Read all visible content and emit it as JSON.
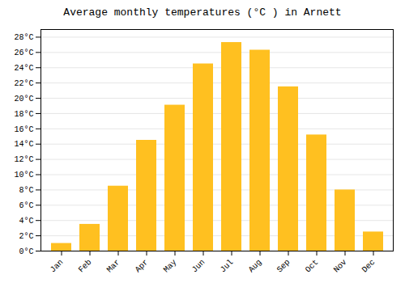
{
  "chart_data": {
    "type": "bar",
    "title": "Average monthly temperatures (°C ) in Arnett",
    "categories": [
      "Jan",
      "Feb",
      "Mar",
      "Apr",
      "May",
      "Jun",
      "Jul",
      "Aug",
      "Sep",
      "Oct",
      "Nov",
      "Dec"
    ],
    "values": [
      1.0,
      3.5,
      8.5,
      14.5,
      19.1,
      24.5,
      27.3,
      26.3,
      21.5,
      15.2,
      8.0,
      2.5
    ],
    "color": "#FFC020",
    "ylim": [
      0,
      29
    ],
    "yticks": [
      {
        "value": 0,
        "label": "0°C"
      },
      {
        "value": 2,
        "label": "2°C"
      },
      {
        "value": 4,
        "label": "4°C"
      },
      {
        "value": 6,
        "label": "6°C"
      },
      {
        "value": 8,
        "label": "8°C"
      },
      {
        "value": 10,
        "label": "10°C"
      },
      {
        "value": 12,
        "label": "12°C"
      },
      {
        "value": 14,
        "label": "14°C"
      },
      {
        "value": 16,
        "label": "16°C"
      },
      {
        "value": 18,
        "label": "18°C"
      },
      {
        "value": 20,
        "label": "20°C"
      },
      {
        "value": 22,
        "label": "22°C"
      },
      {
        "value": 24,
        "label": "24°C"
      },
      {
        "value": 26,
        "label": "26°C"
      },
      {
        "value": 28,
        "label": "28°C"
      }
    ],
    "grid": true
  }
}
